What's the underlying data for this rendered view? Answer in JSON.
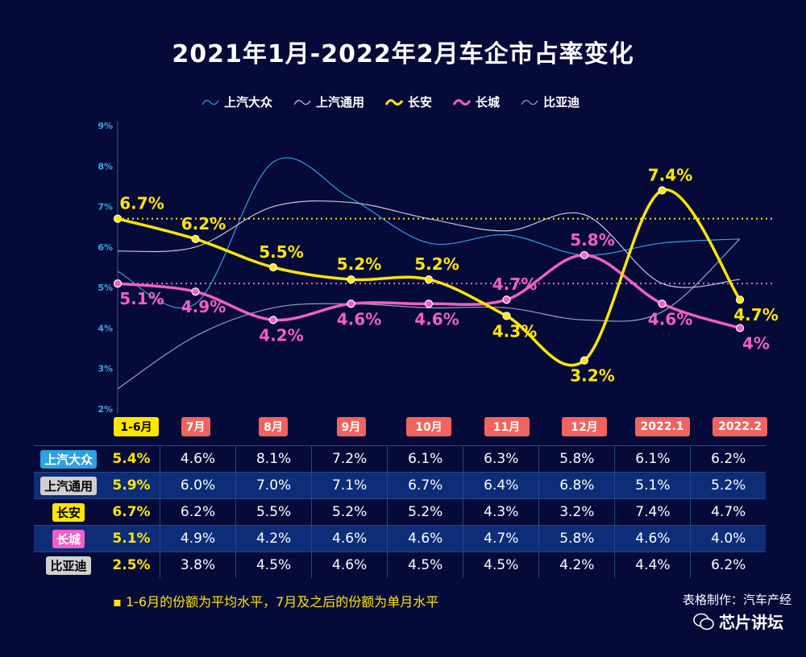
{
  "title": "2021年1月-2022年2月车企市占率变化",
  "note": "1-6月的份额为平均水平，7月及之后的份额为单月水平",
  "credit": "表格制作：汽车产经",
  "watermark": "芯片讲坛",
  "chart_data": {
    "type": "line",
    "title": "2021年1月-2022年2月车企市占率变化",
    "categories": [
      "1-6月",
      "7月",
      "8月",
      "9月",
      "10月",
      "11月",
      "12月",
      "2022.1",
      "2022.2"
    ],
    "y_ticks": [
      "2%",
      "3%",
      "4%",
      "5%",
      "6%",
      "7%",
      "8%",
      "9%"
    ],
    "ylim": [
      2,
      9
    ],
    "reference_lines": [
      6.7,
      5.1
    ],
    "series": [
      {
        "name": "上汽大众",
        "color": "#2f9fe8",
        "values": [
          5.4,
          4.6,
          8.1,
          7.2,
          6.1,
          6.3,
          5.8,
          6.1,
          6.2
        ],
        "labels": null
      },
      {
        "name": "上汽通用",
        "color": "#c8c8d8",
        "values": [
          5.9,
          6.0,
          7.0,
          7.1,
          6.7,
          6.4,
          6.8,
          5.1,
          5.2
        ],
        "labels": null
      },
      {
        "name": "长安",
        "color": "#ffe600",
        "values": [
          6.7,
          6.2,
          5.5,
          5.2,
          5.2,
          4.3,
          3.2,
          7.4,
          4.7
        ],
        "labels": [
          "6.7%",
          "6.2%",
          "5.5%",
          "5.2%",
          "5.2%",
          "4.3%",
          "3.2%",
          "7.4%",
          "4.7%"
        ]
      },
      {
        "name": "长城",
        "color": "#f25fc4",
        "values": [
          5.1,
          4.9,
          4.2,
          4.6,
          4.6,
          4.7,
          5.8,
          4.6,
          4.0
        ],
        "labels": [
          "5.1%",
          "4.9%",
          "4.2%",
          "4.6%",
          "4.6%",
          "4.7%",
          "5.8%",
          "4.6%",
          "4%"
        ]
      },
      {
        "name": "比亚迪",
        "color": "#9aa0b8",
        "values": [
          2.5,
          3.8,
          4.5,
          4.6,
          4.5,
          4.5,
          4.2,
          4.4,
          6.2
        ],
        "labels": null
      }
    ]
  },
  "table": {
    "rows": [
      {
        "name": "上汽大众",
        "bg": "#2fa0e0",
        "cells": [
          "5.4%",
          "4.6%",
          "8.1%",
          "7.2%",
          "6.1%",
          "6.3%",
          "5.8%",
          "6.1%",
          "6.2%"
        ]
      },
      {
        "name": "上汽通用",
        "bg": "#d0d0d0",
        "cells": [
          "5.9%",
          "6.0%",
          "7.0%",
          "7.1%",
          "6.7%",
          "6.4%",
          "6.8%",
          "5.1%",
          "5.2%"
        ]
      },
      {
        "name": "长安",
        "bg": "#ffe600",
        "cells": [
          "6.7%",
          "6.2%",
          "5.5%",
          "5.2%",
          "5.2%",
          "4.3%",
          "3.2%",
          "7.4%",
          "4.7%"
        ]
      },
      {
        "name": "长城",
        "bg": "#f25fc4",
        "cells": [
          "5.1%",
          "4.9%",
          "4.2%",
          "4.6%",
          "4.6%",
          "4.7%",
          "5.8%",
          "4.6%",
          "4.0%"
        ]
      },
      {
        "name": "比亚迪",
        "bg": "#d0d0d0",
        "cells": [
          "2.5%",
          "3.8%",
          "4.5%",
          "4.6%",
          "4.5%",
          "4.5%",
          "4.2%",
          "4.4%",
          "6.2%"
        ]
      }
    ]
  }
}
